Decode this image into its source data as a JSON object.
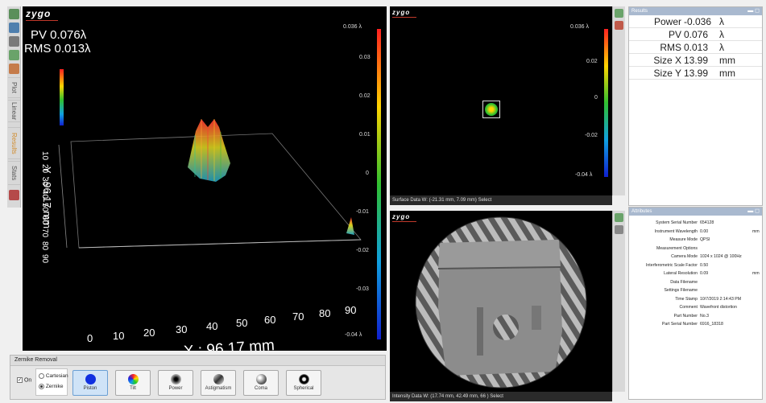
{
  "brand": "zygo",
  "main_view": {
    "pv": "PV 0.076λ",
    "rms": "RMS 0.013λ",
    "x_axis_label": "X : 96.17 mm",
    "x_ticks": [
      "0",
      "10",
      "20",
      "30",
      "40",
      "50",
      "60",
      "70",
      "80",
      "90"
    ],
    "y_axis_label": "Y : 96.17 mm",
    "y_ticks": [
      "10",
      "20",
      "30",
      "40",
      "50",
      "60",
      "70",
      "80",
      "90"
    ],
    "colorbar_ticks": [
      "0.036 λ",
      "0.03",
      "0.02",
      "0.01",
      "0",
      "-0.01",
      "-0.02",
      "-0.03",
      "-0.04 λ"
    ]
  },
  "left_strip": {
    "tabs": [
      "Plot",
      "Linear",
      "Results",
      "Stats"
    ]
  },
  "zernike": {
    "header": "Zernike Removal",
    "on_label": "On",
    "mode_options": [
      "Cartesian",
      "Zernike"
    ],
    "selected_mode": "Zernike",
    "buttons": [
      {
        "label": "Piston",
        "icon": "piston-icon",
        "active": true
      },
      {
        "label": "Tilt",
        "icon": "tilt-icon",
        "active": false
      },
      {
        "label": "Power",
        "icon": "power-icon",
        "active": false
      },
      {
        "label": "Astigmatism",
        "icon": "astigmatism-icon",
        "active": false
      },
      {
        "label": "Coma",
        "icon": "coma-icon",
        "active": false
      },
      {
        "label": "Spherical",
        "icon": "spherical-icon",
        "active": false
      }
    ]
  },
  "surface_pane": {
    "status": "Surface Data   W: (-21.31 mm, 7.09 mm)   Select",
    "colorbar_ticks": [
      "0.036 λ",
      "0.02",
      "0",
      "-0.02",
      "-0.04 λ"
    ]
  },
  "intensity_pane": {
    "status": "Intensity Data   W: (17.74 mm, 42.49 mm, 66 )   Select"
  },
  "results": {
    "title": "Results",
    "rows": [
      {
        "label": "Power",
        "value": "-0.036",
        "unit": "λ"
      },
      {
        "label": "PV",
        "value": "0.076",
        "unit": "λ"
      },
      {
        "label": "RMS",
        "value": "0.013",
        "unit": "λ"
      },
      {
        "label": "Size X",
        "value": "13.99",
        "unit": "mm"
      },
      {
        "label": "Size Y",
        "value": "13.99",
        "unit": "mm"
      }
    ]
  },
  "attributes": {
    "title": "Attributes",
    "rows": [
      {
        "label": "System Serial Number",
        "value": "654128",
        "unit": ""
      },
      {
        "label": "Instrument Wavelength",
        "value": "0.00",
        "unit": "mm"
      },
      {
        "label": "Measure Mode",
        "value": "QPSI",
        "unit": ""
      },
      {
        "label": "Measurement Options",
        "value": "",
        "unit": ""
      },
      {
        "label": "Camera Mode",
        "value": "1024 x 1024 @ 100Hz",
        "unit": ""
      },
      {
        "label": "Interferometric Scale Factor",
        "value": "0.50",
        "unit": ""
      },
      {
        "label": "Lateral Resolution",
        "value": "0.09",
        "unit": "mm"
      },
      {
        "label": "Data Filename",
        "value": "",
        "unit": ""
      },
      {
        "label": "Settings Filename",
        "value": "",
        "unit": ""
      },
      {
        "label": "Time Stamp",
        "value": "10/7/2019 2:14:43 PM",
        "unit": ""
      },
      {
        "label": "Comment",
        "value": "Wavefront distortion",
        "unit": ""
      },
      {
        "label": "Part Number",
        "value": "No.3",
        "unit": ""
      },
      {
        "label": "Part Serial Number",
        "value": "6916_18318",
        "unit": ""
      }
    ]
  },
  "colors": {
    "accent": "#a9b9cf",
    "background": "#000000",
    "active_button": "#cfe3f7"
  }
}
